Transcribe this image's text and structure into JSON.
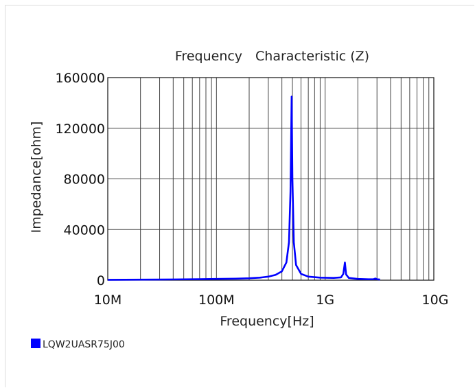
{
  "chart_data": {
    "type": "line",
    "title": "Frequency　Characteristic (Z)",
    "xlabel": "Frequency[Hz]",
    "ylabel": "Impedance[ohm]",
    "xscale": "log",
    "xlim": [
      10000000,
      10000000000
    ],
    "ylim": [
      0,
      160000
    ],
    "x_ticks": [
      10000000,
      100000000,
      1000000000,
      10000000000
    ],
    "x_tick_labels": [
      "10M",
      "100M",
      "1G",
      "10G"
    ],
    "y_ticks": [
      0,
      40000,
      80000,
      120000,
      160000
    ],
    "y_tick_labels": [
      "0",
      "40000",
      "80000",
      "120000",
      "160000"
    ],
    "grid": true,
    "legend_position": "bottom-left",
    "series": [
      {
        "name": "LQW2UASR75J00",
        "color": "#0000ff",
        "points": [
          [
            10000000,
            300
          ],
          [
            30000000,
            500
          ],
          [
            70000000,
            800
          ],
          [
            100000000,
            1000
          ],
          [
            150000000,
            1200
          ],
          [
            200000000,
            1500
          ],
          [
            250000000,
            2000
          ],
          [
            300000000,
            2800
          ],
          [
            350000000,
            4200
          ],
          [
            400000000,
            7000
          ],
          [
            440000000,
            14000
          ],
          [
            465000000,
            30000
          ],
          [
            480000000,
            70000
          ],
          [
            492000000,
            145000
          ],
          [
            500000000,
            80000
          ],
          [
            515000000,
            30000
          ],
          [
            540000000,
            12000
          ],
          [
            600000000,
            5000
          ],
          [
            700000000,
            2800
          ],
          [
            900000000,
            2000
          ],
          [
            1200000000,
            1800
          ],
          [
            1400000000,
            2200
          ],
          [
            1470000000,
            5000
          ],
          [
            1520000000,
            14000
          ],
          [
            1560000000,
            4500
          ],
          [
            1650000000,
            1800
          ],
          [
            2000000000,
            1000
          ],
          [
            2500000000,
            700
          ],
          [
            2800000000,
            800
          ],
          [
            2900000000,
            1300
          ],
          [
            3000000000,
            700
          ],
          [
            3200000000,
            500
          ]
        ]
      }
    ]
  }
}
